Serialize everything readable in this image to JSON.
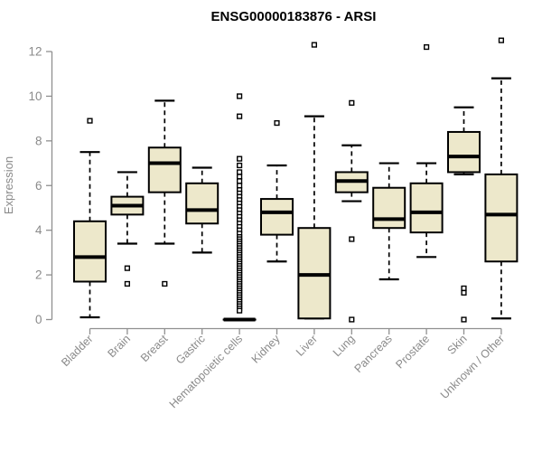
{
  "chart_data": {
    "type": "boxplot",
    "title": "ENSG00000183876 - ARSI",
    "ylabel": "Expression",
    "xlabel": "",
    "ylim": [
      0,
      12
    ],
    "yticks": [
      0,
      2,
      4,
      6,
      8,
      10,
      12
    ],
    "grid": false,
    "legend": null,
    "colors": {
      "box_fill": "#EDE8CB",
      "box_stroke": "#000000",
      "median": "#000000",
      "whisker": "#000000",
      "outlier_stroke": "#000000",
      "axis_line": "#909090",
      "tick_text": "#8a8a8a",
      "title_text": "#000000"
    },
    "categories": [
      "Bladder",
      "Brain",
      "Breast",
      "Gastric",
      "Hematopoietic cells",
      "Kidney",
      "Liver",
      "Lung",
      "Pancreas",
      "Prostate",
      "Skin",
      "Unknown / Other"
    ],
    "series": [
      {
        "name": "Bladder",
        "whisker_low": 0.1,
        "q1": 1.7,
        "median": 2.8,
        "q3": 4.4,
        "whisker_high": 7.5,
        "outliers": [
          8.9
        ]
      },
      {
        "name": "Brain",
        "whisker_low": 3.4,
        "q1": 4.7,
        "median": 5.1,
        "q3": 5.5,
        "whisker_high": 6.6,
        "outliers": [
          2.3,
          1.6
        ]
      },
      {
        "name": "Breast",
        "whisker_low": 3.4,
        "q1": 5.7,
        "median": 7.0,
        "q3": 7.7,
        "whisker_high": 9.8,
        "outliers": [
          1.6
        ]
      },
      {
        "name": "Gastric",
        "whisker_low": 3.0,
        "q1": 4.3,
        "median": 4.9,
        "q3": 6.1,
        "whisker_high": 6.8,
        "outliers": []
      },
      {
        "name": "Hematopoietic cells",
        "whisker_low": 0,
        "q1": 0,
        "median": 0,
        "q3": 0,
        "whisker_high": 0,
        "outliers": [
          10.0,
          9.1,
          7.2,
          6.9,
          6.6,
          6.4,
          6.2,
          6.0,
          5.8,
          5.65,
          5.5,
          5.35,
          5.2,
          5.05,
          4.9,
          4.75,
          4.6,
          4.45,
          4.3,
          4.15,
          4.0,
          3.85,
          3.7,
          3.6,
          3.5,
          3.4,
          3.3,
          3.2,
          3.1,
          3.0,
          2.9,
          2.8,
          2.7,
          2.6,
          2.5,
          2.4,
          2.3,
          2.2,
          2.1,
          2.0,
          1.9,
          1.8,
          1.7,
          1.6,
          1.5,
          1.4,
          1.3,
          1.2,
          1.1,
          1.0,
          0.9,
          0.8,
          0.7,
          0.6,
          0.5,
          0.4
        ]
      },
      {
        "name": "Kidney",
        "whisker_low": 2.6,
        "q1": 3.8,
        "median": 4.8,
        "q3": 5.4,
        "whisker_high": 6.9,
        "outliers": [
          8.8
        ]
      },
      {
        "name": "Liver",
        "whisker_low": 0.05,
        "q1": 0.05,
        "median": 2.0,
        "q3": 4.1,
        "whisker_high": 9.1,
        "outliers": [
          12.3
        ]
      },
      {
        "name": "Lung",
        "whisker_low": 5.3,
        "q1": 5.7,
        "median": 6.2,
        "q3": 6.6,
        "whisker_high": 7.8,
        "outliers": [
          9.7,
          3.6,
          0.0
        ]
      },
      {
        "name": "Pancreas",
        "whisker_low": 1.8,
        "q1": 4.1,
        "median": 4.5,
        "q3": 5.9,
        "whisker_high": 7.0,
        "outliers": []
      },
      {
        "name": "Prostate",
        "whisker_low": 2.8,
        "q1": 3.9,
        "median": 4.8,
        "q3": 6.1,
        "whisker_high": 7.0,
        "outliers": [
          12.2
        ]
      },
      {
        "name": "Skin",
        "whisker_low": 6.5,
        "q1": 6.6,
        "median": 7.3,
        "q3": 8.4,
        "whisker_high": 9.5,
        "outliers": [
          1.4,
          1.2,
          0.0
        ]
      },
      {
        "name": "Unknown / Other",
        "whisker_low": 0.05,
        "q1": 2.6,
        "median": 4.7,
        "q3": 6.5,
        "whisker_high": 10.8,
        "outliers": [
          12.5
        ]
      }
    ]
  }
}
